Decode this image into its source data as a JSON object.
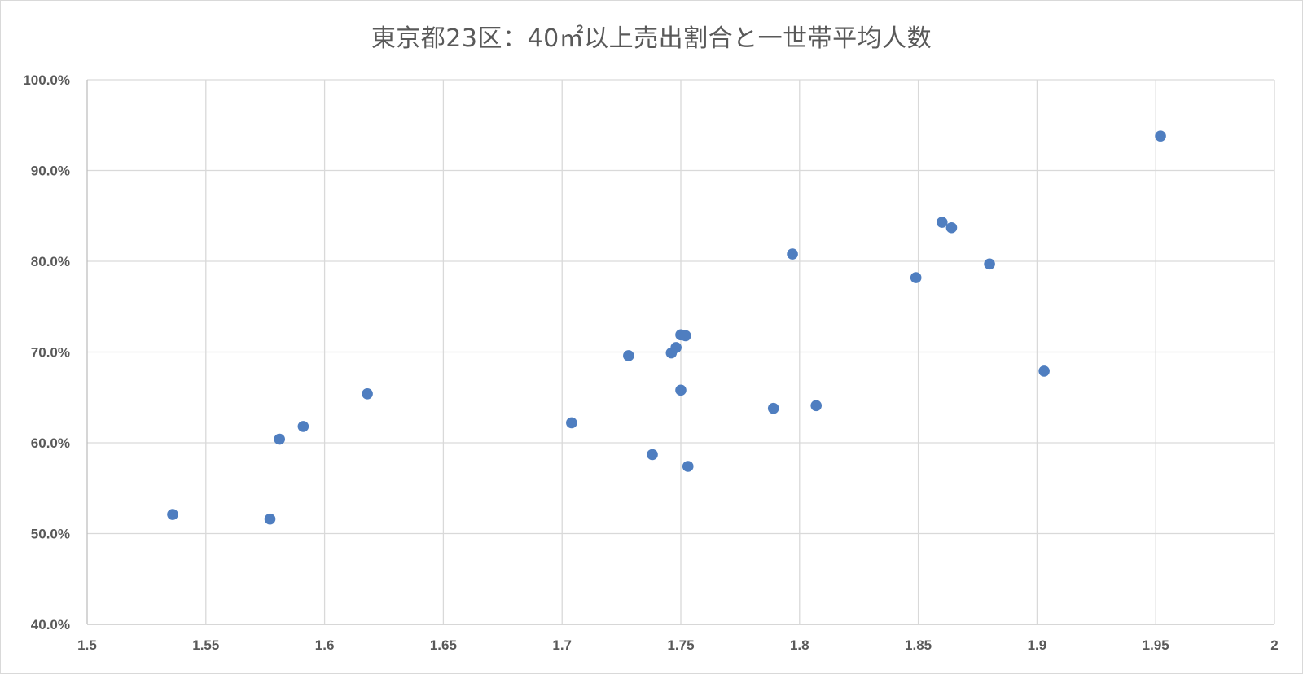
{
  "chart_data": {
    "type": "scatter",
    "title": "東京都23区：40㎡以上売出割合と一世帯平均人数",
    "xlabel": "",
    "ylabel": "",
    "xlim": [
      1.5,
      2.0
    ],
    "ylim": [
      0.4,
      1.0
    ],
    "x_ticks": [
      1.5,
      1.55,
      1.6,
      1.65,
      1.7,
      1.75,
      1.8,
      1.85,
      1.9,
      1.95,
      2.0
    ],
    "x_tick_labels": [
      "1.5",
      "1.55",
      "1.6",
      "1.65",
      "1.7",
      "1.75",
      "1.8",
      "1.85",
      "1.9",
      "1.95",
      "2"
    ],
    "y_ticks": [
      0.4,
      0.5,
      0.6,
      0.7,
      0.8,
      0.9,
      1.0
    ],
    "y_tick_labels": [
      "40.0%",
      "50.0%",
      "60.0%",
      "70.0%",
      "80.0%",
      "90.0%",
      "100.0%"
    ],
    "grid": true,
    "legend": "none",
    "marker_color": "#4f7ec0",
    "gridline_color": "#d9d9d9",
    "points": [
      {
        "x": 1.536,
        "y": 0.521
      },
      {
        "x": 1.577,
        "y": 0.516
      },
      {
        "x": 1.581,
        "y": 0.604
      },
      {
        "x": 1.591,
        "y": 0.618
      },
      {
        "x": 1.618,
        "y": 0.654
      },
      {
        "x": 1.704,
        "y": 0.622
      },
      {
        "x": 1.728,
        "y": 0.696
      },
      {
        "x": 1.738,
        "y": 0.587
      },
      {
        "x": 1.746,
        "y": 0.699
      },
      {
        "x": 1.748,
        "y": 0.705
      },
      {
        "x": 1.75,
        "y": 0.719
      },
      {
        "x": 1.752,
        "y": 0.718
      },
      {
        "x": 1.75,
        "y": 0.658
      },
      {
        "x": 1.753,
        "y": 0.574
      },
      {
        "x": 1.789,
        "y": 0.638
      },
      {
        "x": 1.797,
        "y": 0.808
      },
      {
        "x": 1.807,
        "y": 0.641
      },
      {
        "x": 1.849,
        "y": 0.782
      },
      {
        "x": 1.86,
        "y": 0.843
      },
      {
        "x": 1.864,
        "y": 0.837
      },
      {
        "x": 1.88,
        "y": 0.797
      },
      {
        "x": 1.903,
        "y": 0.679
      },
      {
        "x": 1.952,
        "y": 0.938
      }
    ]
  }
}
